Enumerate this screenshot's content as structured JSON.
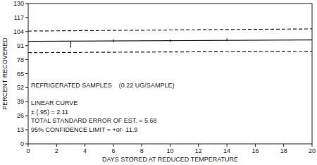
{
  "chart_data": {
    "type": "line",
    "annotations": [
      "REFRIGERATED SAMPLES    (0.22 UG/SAMPLE)",
      "LINEAR CURVE",
      "± (.95) = 2.11",
      "TOTAL STANDARD ERROR OF EST. = 5.68",
      "95% CONFIDENCE LIMIT = +or- 11.9"
    ],
    "x_label": "DAYS STORED AT REDUCED TEMPERATURE",
    "y_label": "PERCENT RECOVERED",
    "x": [
      0,
      20
    ],
    "series": [
      {
        "color": "#222222",
        "line_style": "dashed",
        "values": [
          104.5,
          106.5
        ]
      },
      {
        "color": "#222222",
        "line_style": "solid",
        "values": [
          95.0,
          96.3
        ]
      },
      {
        "color": "#222222",
        "line_style": "dashed",
        "values": [
          84.5,
          85.8
        ]
      },
      {
        "type": "scatter",
        "color": "#222222",
        "marker": "vline",
        "x": [
          3,
          3,
          6,
          10,
          14
        ],
        "values": [
          93.5,
          90.5,
          95.5,
          95.5,
          96.5
        ]
      }
    ],
    "xlim": [
      0,
      20
    ],
    "xticks": [
      0,
      2,
      4,
      6,
      8,
      10,
      12,
      14,
      16,
      18,
      20
    ],
    "ylim": [
      0,
      130
    ],
    "yticks": [
      0,
      13,
      26,
      39,
      52,
      65,
      78,
      91,
      104,
      117,
      130
    ],
    "grid": false
  }
}
